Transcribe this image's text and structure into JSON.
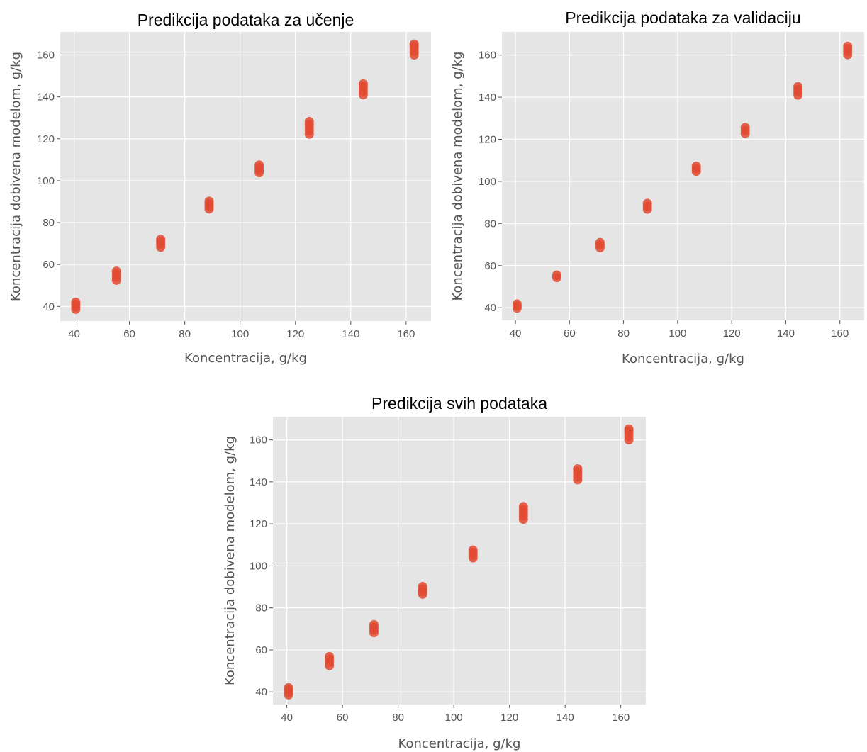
{
  "chart_data": [
    {
      "type": "scatter",
      "title": "Predikcija podataka za učenje",
      "xlabel": "Koncentracija, g/kg",
      "ylabel": "Koncentracija dobivena modelom, g/kg",
      "xlim": [
        35,
        169
      ],
      "ylim": [
        33,
        171
      ],
      "xticks": [
        40,
        60,
        80,
        100,
        120,
        140,
        160
      ],
      "yticks": [
        40,
        60,
        80,
        100,
        120,
        140,
        160
      ],
      "grid": true,
      "color": "#E24A33",
      "x": [
        40.6,
        40.6,
        40.6,
        40.6,
        55.3,
        55.3,
        55.3,
        55.3,
        71.3,
        71.3,
        71.3,
        71.3,
        88.8,
        88.8,
        88.8,
        88.8,
        106.9,
        106.9,
        106.9,
        106.9,
        125.0,
        125.0,
        125.0,
        125.0,
        125.0,
        144.5,
        144.5,
        144.5,
        144.5,
        144.5,
        162.9,
        162.9,
        162.9,
        162.9,
        162.9
      ],
      "y": [
        38.6,
        39.8,
        41.0,
        42.0,
        52.5,
        54.0,
        55.5,
        56.8,
        68.2,
        69.5,
        70.8,
        72.0,
        86.5,
        87.8,
        89.0,
        90.2,
        103.8,
        105.0,
        106.3,
        107.5,
        122.2,
        123.8,
        125.3,
        126.8,
        128.2,
        141.0,
        142.4,
        143.8,
        145.0,
        146.2,
        160.0,
        161.5,
        163.0,
        164.2,
        165.2
      ]
    },
    {
      "type": "scatter",
      "title": "Predikcija podataka za validaciju",
      "xlabel": "Koncentracija, g/kg",
      "ylabel": "Koncentracija dobivena modelom, g/kg",
      "xlim": [
        35,
        169
      ],
      "ylim": [
        34,
        171
      ],
      "xticks": [
        40,
        60,
        80,
        100,
        120,
        140,
        160
      ],
      "yticks": [
        40,
        60,
        80,
        100,
        120,
        140,
        160
      ],
      "grid": true,
      "color": "#E24A33",
      "x": [
        40.6,
        40.6,
        40.6,
        55.3,
        55.3,
        71.3,
        71.3,
        71.3,
        88.8,
        88.8,
        88.8,
        106.9,
        106.9,
        106.9,
        125.0,
        125.0,
        125.0,
        144.5,
        144.5,
        144.5,
        144.5,
        162.9,
        162.9,
        162.9,
        162.9
      ],
      "y": [
        39.8,
        40.8,
        41.8,
        54.3,
        55.5,
        68.5,
        69.8,
        71.0,
        86.8,
        88.2,
        89.6,
        104.8,
        106.0,
        107.2,
        122.8,
        124.2,
        125.6,
        141.0,
        142.4,
        143.7,
        145.0,
        160.2,
        161.6,
        163.0,
        164.2
      ]
    },
    {
      "type": "scatter",
      "title": "Predikcija svih podataka",
      "xlabel": "Koncentracija, g/kg",
      "ylabel": "Koncentracija dobivena modelom, g/kg",
      "xlim": [
        35,
        169
      ],
      "ylim": [
        34,
        171
      ],
      "xticks": [
        40,
        60,
        80,
        100,
        120,
        140,
        160
      ],
      "yticks": [
        40,
        60,
        80,
        100,
        120,
        140,
        160
      ],
      "grid": true,
      "color": "#E24A33",
      "x": [
        40.6,
        40.6,
        40.6,
        40.6,
        55.3,
        55.3,
        55.3,
        55.3,
        71.3,
        71.3,
        71.3,
        71.3,
        88.8,
        88.8,
        88.8,
        88.8,
        106.9,
        106.9,
        106.9,
        106.9,
        125.0,
        125.0,
        125.0,
        125.0,
        125.0,
        144.5,
        144.5,
        144.5,
        144.5,
        144.5,
        162.9,
        162.9,
        162.9,
        162.9,
        162.9
      ],
      "y": [
        38.6,
        39.8,
        41.0,
        42.0,
        52.5,
        54.0,
        55.5,
        56.8,
        68.2,
        69.5,
        70.8,
        72.0,
        86.5,
        87.8,
        89.0,
        90.2,
        103.8,
        105.0,
        106.3,
        107.5,
        122.2,
        123.8,
        125.3,
        126.8,
        128.2,
        141.0,
        142.4,
        143.8,
        145.0,
        146.2,
        160.0,
        161.5,
        163.0,
        164.2,
        165.2
      ]
    }
  ]
}
